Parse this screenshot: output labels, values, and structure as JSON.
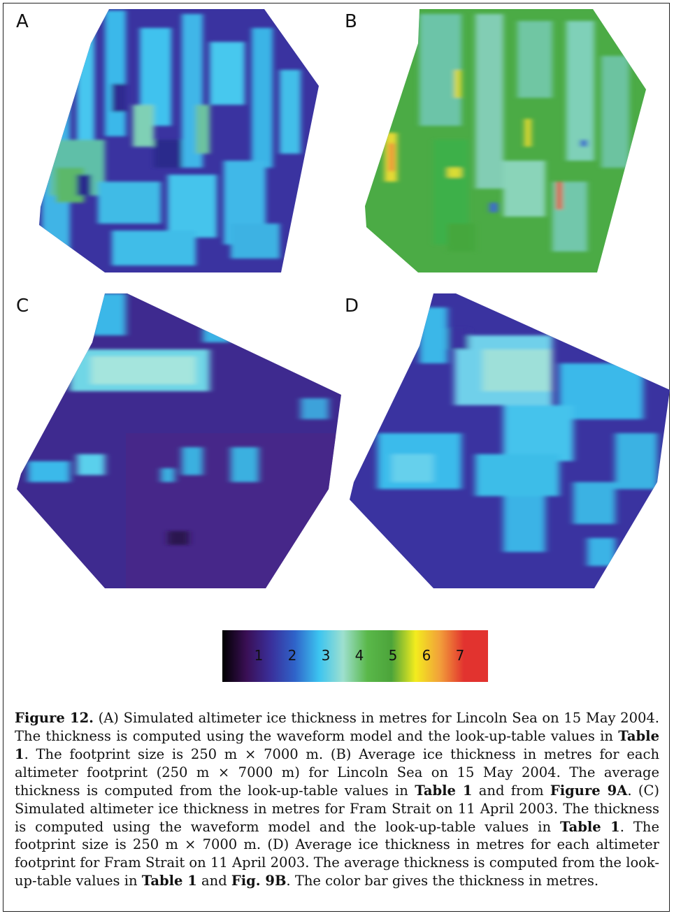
{
  "panels": [
    {
      "label": "A"
    },
    {
      "label": "B"
    },
    {
      "label": "C"
    },
    {
      "label": "D"
    }
  ],
  "colorbar": {
    "ticks": [
      "1",
      "2",
      "3",
      "4",
      "5",
      "6",
      "7"
    ],
    "stops": [
      "#000000",
      "#3a0f55",
      "#3a2f9a",
      "#2f63c9",
      "#3cc4f0",
      "#9ee0cf",
      "#5ab84a",
      "#4ca43a",
      "#f3ec1e",
      "#f2a03a",
      "#e2332f",
      "#e2332f"
    ]
  },
  "caption": {
    "fig": "Figure 12.",
    "t1": " (A) Simulated altimeter ice thickness in metres for Lincoln Sea on 15 May 2004. The thickness is computed using the waveform model and the look-up-table values in ",
    "ref1": "Table 1",
    "t2": ". The footprint size is 250 m × 7000 m. (B) Average ice thickness in metres for each altimeter footprint (250 m × 7000 m) for Lincoln Sea on 15 May 2004. The average thickness is computed from the look-up-table values in ",
    "ref2": "Table 1",
    "t3": " and from ",
    "ref3": "Figure 9A",
    "t4": ". (C) Simulated altimeter ice thickness in metres for Fram Strait on 11 April 2003. The thickness is computed using the waveform model and the look-up-table values in ",
    "ref4": "Table 1",
    "t5": ". The footprint size is 250 m × 7000 m. (D) Average ice thickness in metres for each altimeter footprint for Fram Strait on 11 April 2003. The average thickness is computed from the look-up-table values in ",
    "ref5": "Table 1",
    "t6": " and ",
    "ref6": "Fig. 9B",
    "t7": ". The color bar gives the thickness in metres."
  }
}
